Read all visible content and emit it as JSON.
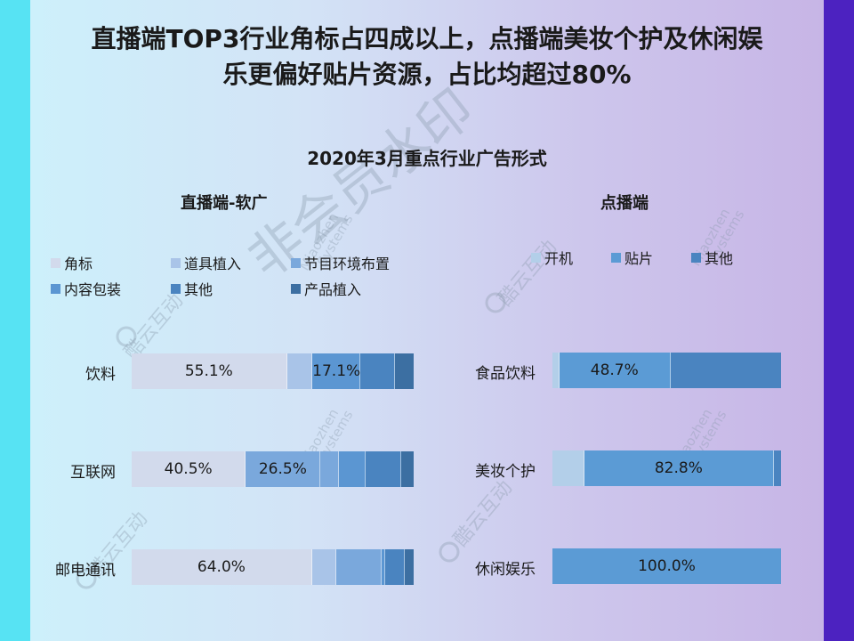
{
  "title_line1": "直播端TOP3行业角标占四成以上，点播端美妆个护及休闲娱",
  "title_line2": "乐更偏好贴片资源，占比均超过80%",
  "chart_data": [
    {
      "type": "bar",
      "stacked": true,
      "orientation": "horizontal",
      "title": "2020年3月重点行业广告形式",
      "subtitle": "直播端-软广",
      "categories": [
        "饮料",
        "互联网",
        "邮电通讯"
      ],
      "series": [
        {
          "name": "角标",
          "color": "#d2daec",
          "values": [
            55.1,
            40.5,
            64.0
          ],
          "labels": [
            "55.1%",
            "40.5%",
            "64.0%"
          ]
        },
        {
          "name": "道具植入",
          "color": "#a9c4e8",
          "values": [
            9.0,
            0,
            8.5
          ],
          "labels": [
            "",
            "",
            ""
          ]
        },
        {
          "name": "节目环境布置",
          "color": "#7aa8dc",
          "values": [
            0,
            26.5,
            0
          ],
          "labels": [
            "",
            "26.5%",
            ""
          ]
        },
        {
          "name": "节目环境布置",
          "color": "#7aa8dc",
          "values": [
            0,
            6.5,
            16.0
          ],
          "labels": [
            "",
            "",
            ""
          ]
        },
        {
          "name": "内容包装",
          "color": "#5b96d2",
          "values": [
            17.1,
            9.5,
            1.5
          ],
          "labels": [
            "17.1%",
            "",
            ""
          ]
        },
        {
          "name": "其他",
          "color": "#4a84c0",
          "values": [
            12.3,
            12.5,
            7.0
          ],
          "labels": [
            "",
            "",
            ""
          ]
        },
        {
          "name": "产品植入",
          "color": "#3c6fa2",
          "values": [
            6.5,
            4.5,
            3.0
          ],
          "labels": [
            "",
            "",
            ""
          ]
        }
      ],
      "legend": [
        "角标",
        "道具植入",
        "节目环境布置",
        "内容包装",
        "其他",
        "产品植入"
      ],
      "legend_placement": "top"
    },
    {
      "type": "bar",
      "stacked": true,
      "orientation": "horizontal",
      "subtitle": "点播端",
      "categories": [
        "食品饮料",
        "美妆个护",
        "休闲娱乐"
      ],
      "series": [
        {
          "name": "开机",
          "color": "#b3cfe9",
          "values": [
            3.0,
            14.0,
            0
          ],
          "labels": [
            "",
            "",
            ""
          ]
        },
        {
          "name": "贴片",
          "color": "#5b9bd5",
          "values": [
            48.7,
            82.8,
            100.0
          ],
          "labels": [
            "48.7%",
            "82.8%",
            "100.0%"
          ]
        },
        {
          "name": "其他",
          "color": "#4a84c0",
          "values": [
            48.3,
            3.2,
            0
          ],
          "labels": [
            "",
            "",
            ""
          ]
        }
      ],
      "legend": [
        "开机",
        "贴片",
        "其他"
      ],
      "legend_placement": "top"
    }
  ],
  "watermark": {
    "brand_text": "酷云互动",
    "big_text": "非会员水印",
    "en_line1": "Miaozhen",
    "en_line2": "Systems"
  }
}
